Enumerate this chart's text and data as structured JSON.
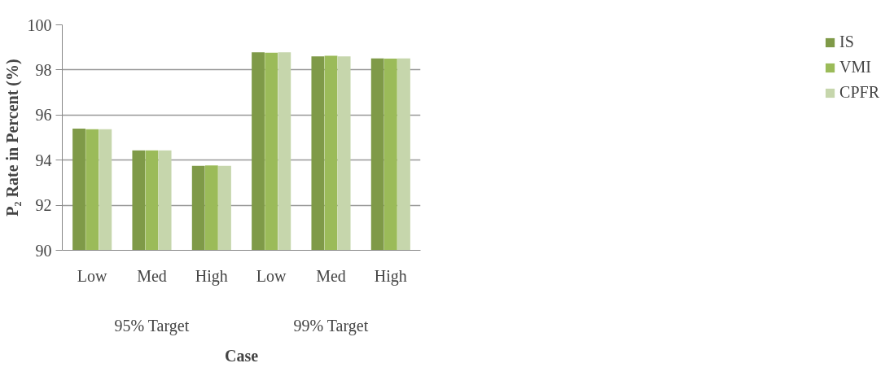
{
  "chart_data": {
    "type": "bar",
    "xlabel": "Case",
    "ylabel": "P₂ Rate in Percent (%)",
    "categories": [
      "Low",
      "Med",
      "High",
      "Low",
      "Med",
      "High"
    ],
    "annotations": [
      "95% Target",
      "99% Target"
    ],
    "series": [
      {
        "name": "IS",
        "color": "#7f9a48",
        "values": [
          95.4,
          94.43,
          93.75,
          98.78,
          98.6,
          98.51
        ]
      },
      {
        "name": "VMI",
        "color": "#9bbb59",
        "values": [
          95.37,
          94.43,
          93.76,
          98.76,
          98.63,
          98.5
        ]
      },
      {
        "name": "CPFR",
        "color": "#c6d6ac",
        "values": [
          95.37,
          94.43,
          93.75,
          98.78,
          98.6,
          98.51
        ]
      }
    ],
    "ylim": [
      90,
      100
    ],
    "yticks": [
      90,
      92,
      94,
      96,
      98,
      100
    ],
    "grid": "y",
    "legend": "right"
  }
}
